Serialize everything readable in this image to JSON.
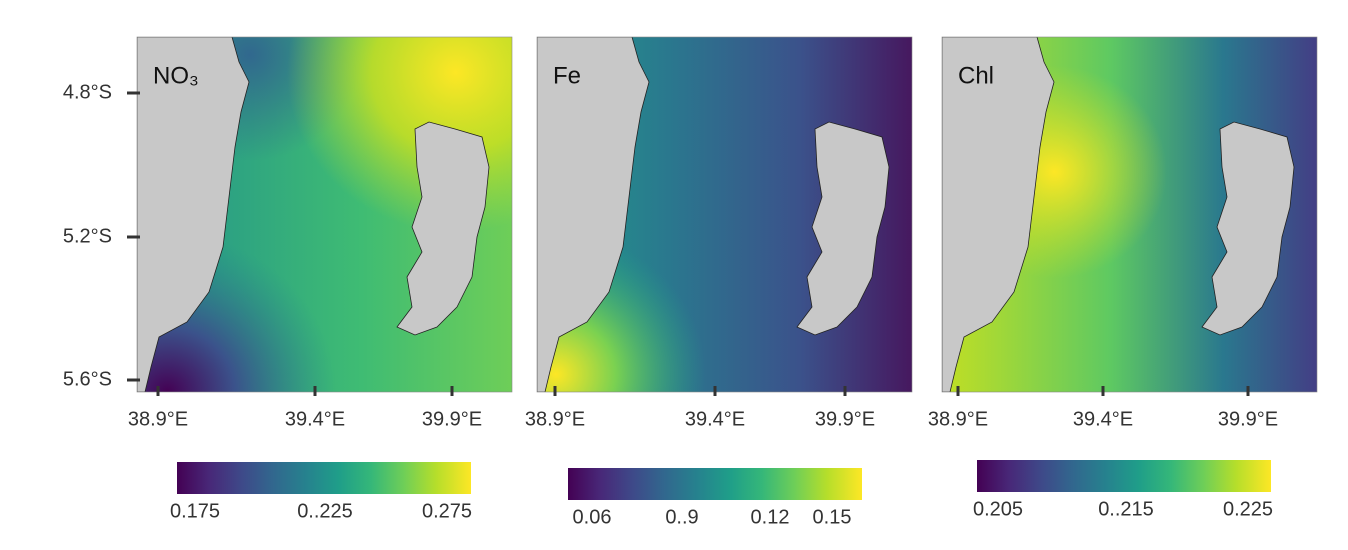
{
  "y_ticks": [
    "4.8°S",
    "5.2°S",
    "5.6°S"
  ],
  "panels": [
    {
      "label": "NO₃",
      "x_ticks": [
        "38.9°E",
        "39.4°E",
        "39.9°E"
      ],
      "colorbar_ticks": [
        "0.175",
        "0..225",
        "0.275"
      ]
    },
    {
      "label": "Fe",
      "x_ticks": [
        "38.9°E",
        "39.4°E",
        "39.9°E"
      ],
      "colorbar_ticks": [
        "0.06",
        "0..9",
        "0.12",
        "0.15"
      ]
    },
    {
      "label": "Chl",
      "x_ticks": [
        "38.9°E",
        "39.4°E",
        "39.9°E"
      ],
      "colorbar_ticks": [
        "0.205",
        "0..215",
        "0.225"
      ]
    }
  ]
}
